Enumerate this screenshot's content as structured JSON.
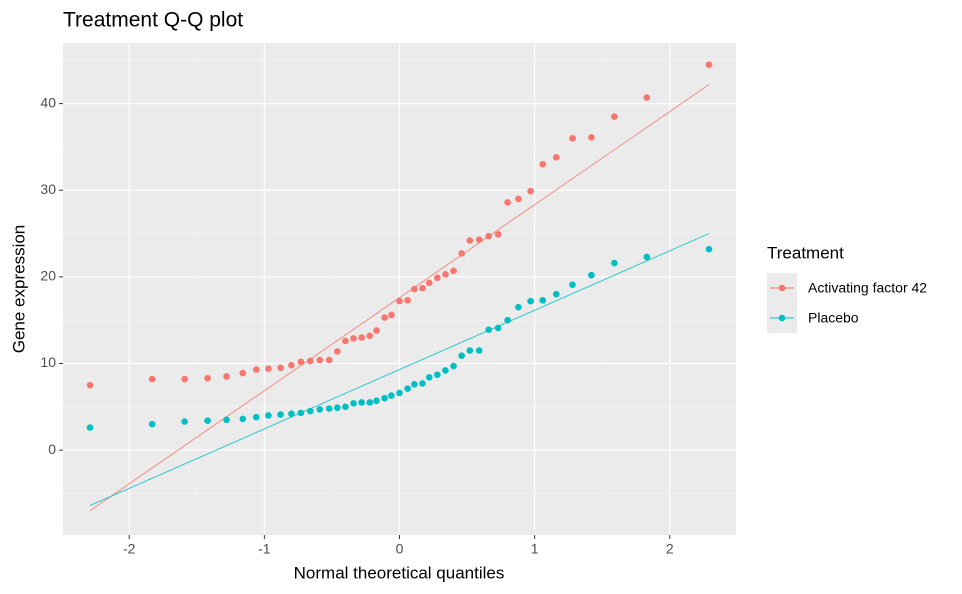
{
  "chart_data": {
    "type": "scatter",
    "title": "Treatment Q-Q plot",
    "x_label": "Normal theoretical quantiles",
    "y_label": "Gene expression",
    "legend_title": "Treatment",
    "legend_position": "right",
    "grid": true,
    "xlim": [
      -2.49,
      2.49
    ],
    "ylim": [
      -9.8,
      47.0
    ],
    "xticks": [
      -2,
      -1,
      0,
      1,
      2
    ],
    "yticks": [
      0,
      10,
      20,
      30,
      40
    ],
    "xminor": [
      -1.5,
      -0.5,
      0.5,
      1.5
    ],
    "yminor": [
      -5,
      5,
      15,
      25,
      35,
      45
    ],
    "x": [
      -2.29,
      -1.83,
      -1.59,
      -1.42,
      -1.28,
      -1.16,
      -1.06,
      -0.97,
      -0.88,
      -0.8,
      -0.73,
      -0.66,
      -0.59,
      -0.52,
      -0.46,
      -0.4,
      -0.34,
      -0.28,
      -0.22,
      -0.17,
      -0.11,
      -0.06,
      0,
      0.06,
      0.11,
      0.17,
      0.22,
      0.28,
      0.34,
      0.4,
      0.46,
      0.52,
      0.59,
      0.66,
      0.73,
      0.8,
      0.88,
      0.97,
      1.06,
      1.16,
      1.28,
      1.42,
      1.59,
      1.83,
      2.29
    ],
    "series": [
      {
        "name": "Activating factor 42",
        "color": "#F8766D",
        "values": [
          7.5,
          8.2,
          8.2,
          8.3,
          8.5,
          8.9,
          9.3,
          9.4,
          9.5,
          9.8,
          10.2,
          10.3,
          10.4,
          10.4,
          11.4,
          12.6,
          12.9,
          13.0,
          13.2,
          13.8,
          15.3,
          15.6,
          17.2,
          17.3,
          18.6,
          18.7,
          19.3,
          19.9,
          20.3,
          20.7,
          22.7,
          24.2,
          24.3,
          24.7,
          24.9,
          28.6,
          29.0,
          29.9,
          33.0,
          33.8,
          36.0,
          36.1,
          38.5,
          40.7,
          44.5
        ],
        "ref_x": [
          -2.29,
          2.29
        ],
        "ref_y": [
          -7.0,
          42.2
        ]
      },
      {
        "name": "Placebo",
        "color": "#00BFC4",
        "values": [
          2.6,
          3.0,
          3.3,
          3.4,
          3.5,
          3.6,
          3.8,
          4.0,
          4.1,
          4.2,
          4.3,
          4.5,
          4.7,
          4.8,
          4.9,
          5.0,
          5.4,
          5.5,
          5.5,
          5.7,
          6.0,
          6.3,
          6.6,
          7.1,
          7.6,
          7.7,
          8.4,
          8.7,
          9.2,
          9.7,
          10.9,
          11.5,
          11.5,
          13.9,
          14.1,
          15.0,
          16.5,
          17.2,
          17.3,
          18.0,
          19.1,
          20.2,
          21.6,
          22.3,
          23.2
        ],
        "ref_x": [
          -2.29,
          2.29
        ],
        "ref_y": [
          -6.4,
          25.0
        ]
      }
    ]
  }
}
